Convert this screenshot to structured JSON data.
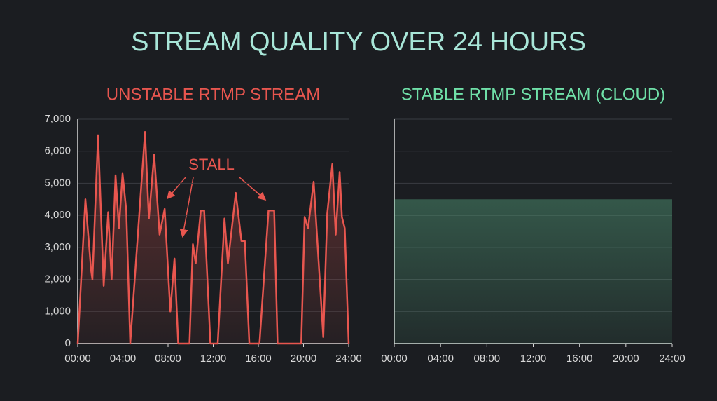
{
  "title": "STREAM QUALITY OVER 24 HOURS",
  "chart_data": [
    {
      "type": "line",
      "title": "UNSTABLE RTMP STREAM",
      "color": "#e8564f",
      "annotation": "STALL",
      "x": [
        0,
        0.68,
        1.18,
        1.3,
        1.8,
        2.3,
        2.7,
        3.0,
        3.35,
        3.65,
        3.97,
        4.3,
        4.65,
        5.96,
        6.3,
        6.77,
        7.25,
        7.7,
        8.2,
        8.57,
        8.9,
        9.9,
        10.2,
        10.45,
        10.9,
        11.2,
        11.75,
        12.4,
        13.0,
        13.3,
        14.0,
        14.5,
        14.8,
        15.2,
        16.1,
        16.9,
        17.4,
        17.7,
        19.8,
        20.1,
        20.4,
        20.9,
        21.75,
        22.1,
        22.55,
        22.85,
        23.2,
        23.4,
        23.65,
        24
      ],
      "values": [
        0,
        4500,
        2300,
        2000,
        6500,
        1800,
        4100,
        2000,
        5250,
        3600,
        5300,
        4150,
        0,
        6600,
        3900,
        5900,
        3400,
        4200,
        1000,
        2650,
        0,
        0,
        3100,
        2500,
        4150,
        4150,
        0,
        0,
        3900,
        2500,
        4700,
        3200,
        3200,
        0,
        0,
        4150,
        4150,
        0,
        0,
        3950,
        3600,
        5050,
        200,
        4050,
        5600,
        3400,
        5350,
        3950,
        3600,
        0
      ],
      "xlim": [
        0,
        24
      ],
      "xticks": [
        {
          "value": 0,
          "label": "00:00"
        },
        {
          "value": 4,
          "label": "04:00"
        },
        {
          "value": 8,
          "label": "08:00"
        },
        {
          "value": 12,
          "label": "12:00"
        },
        {
          "value": 16,
          "label": "16:00"
        },
        {
          "value": 20,
          "label": "20:00"
        },
        {
          "value": 24,
          "label": "24:00"
        }
      ],
      "ylim": [
        0,
        7000
      ],
      "yticks": [
        0,
        {
          "value": 1000,
          "label": "1,000"
        },
        {
          "value": 2000,
          "label": "2,000"
        },
        {
          "value": 3000,
          "label": "3,000"
        },
        {
          "value": 4000,
          "label": "4,000"
        },
        {
          "value": 5000,
          "label": "5,000"
        },
        {
          "value": 6000,
          "label": "6,000"
        },
        {
          "value": 7000,
          "label": "7,000"
        }
      ],
      "y_tick_labels": true,
      "grid": true
    },
    {
      "type": "line",
      "title": "STABLE RTMP STREAM (CLOUD)",
      "color": "#6fe0a8",
      "x": [
        0,
        24
      ],
      "values": [
        4500,
        4500
      ],
      "xlim": [
        0,
        24
      ],
      "xticks": [
        {
          "value": 0,
          "label": "00:00"
        },
        {
          "value": 4,
          "label": "04:00"
        },
        {
          "value": 8,
          "label": "08:00"
        },
        {
          "value": 12,
          "label": "12:00"
        },
        {
          "value": 16,
          "label": "16:00"
        },
        {
          "value": 20,
          "label": "20:00"
        },
        {
          "value": 24,
          "label": "24:00"
        }
      ],
      "ylim": [
        0,
        7000
      ],
      "yticks": [
        0,
        1000,
        2000,
        3000,
        4000,
        5000,
        6000,
        7000
      ],
      "y_tick_labels": false,
      "grid": true
    }
  ]
}
